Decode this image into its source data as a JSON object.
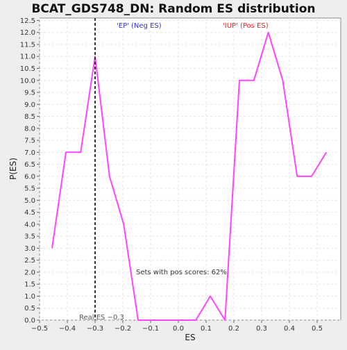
{
  "chart_data": {
    "type": "line",
    "title": "BCAT_GDS748_DN: Random ES distribution",
    "xlabel": "ES",
    "ylabel": "P(ES)",
    "xlim": [
      -0.5,
      0.585
    ],
    "ylim": [
      0.0,
      12.6
    ],
    "x_ticks": [
      -0.5,
      -0.4,
      -0.3,
      -0.2,
      -0.1,
      0.0,
      0.1,
      0.2,
      0.3,
      0.4,
      0.5
    ],
    "x_tick_labels": [
      "−0.5",
      "−0.4",
      "−0.3",
      "−0.2",
      "−0.1",
      "0.0",
      "0.1",
      "0.2",
      "0.3",
      "0.4",
      "0.5"
    ],
    "y_ticks": [
      0.0,
      0.5,
      1.0,
      1.5,
      2.0,
      2.5,
      3.0,
      3.5,
      4.0,
      4.5,
      5.0,
      5.5,
      6.0,
      6.5,
      7.0,
      7.5,
      8.0,
      8.5,
      9.0,
      9.5,
      10.0,
      10.5,
      11.0,
      11.5,
      12.0,
      12.5
    ],
    "y_tick_labels": [
      "0.0",
      "0.5",
      "1.0",
      "1.5",
      "2.0",
      "2.5",
      "3.0",
      "3.5",
      "4.0",
      "4.5",
      "5.0",
      "5.5",
      "6.0",
      "6.5",
      "7.0",
      "7.5",
      "8.0",
      "8.5",
      "9.0",
      "9.5",
      "10.0",
      "10.5",
      "11.0",
      "11.5",
      "12.0",
      "12.5"
    ],
    "grid": true,
    "series": [
      {
        "color": "#ff44ff",
        "x": [
          -0.455,
          -0.405,
          -0.352,
          -0.3,
          -0.248,
          -0.197,
          -0.145,
          -0.093,
          -0.041,
          0.011,
          0.063,
          0.115,
          0.168,
          0.22,
          0.272,
          0.324,
          0.376,
          0.428,
          0.48,
          0.533
        ],
        "y": [
          3.0,
          7.0,
          7.0,
          11.0,
          6.0,
          4.0,
          0.0,
          0.0,
          0.0,
          0.0,
          0.0,
          1.0,
          0.0,
          10.0,
          10.0,
          12.0,
          10.0,
          6.0,
          6.0,
          7.0
        ]
      }
    ],
    "real_es": -0.3,
    "annotations": {
      "neg_label": "'EP' (Neg ES)",
      "pos_label": "'IUP' (Pos ES)",
      "pos_scores": "Sets with pos scores: 62%",
      "real_es_label": "Real ES −0.3"
    },
    "colors": {
      "line": "#ff44ff",
      "neg_label": "#3333cc",
      "pos_label": "#ee2222",
      "real_es_line": "#333333",
      "grid": "#e6e6e6",
      "plot_bg": "#ffffff"
    }
  }
}
